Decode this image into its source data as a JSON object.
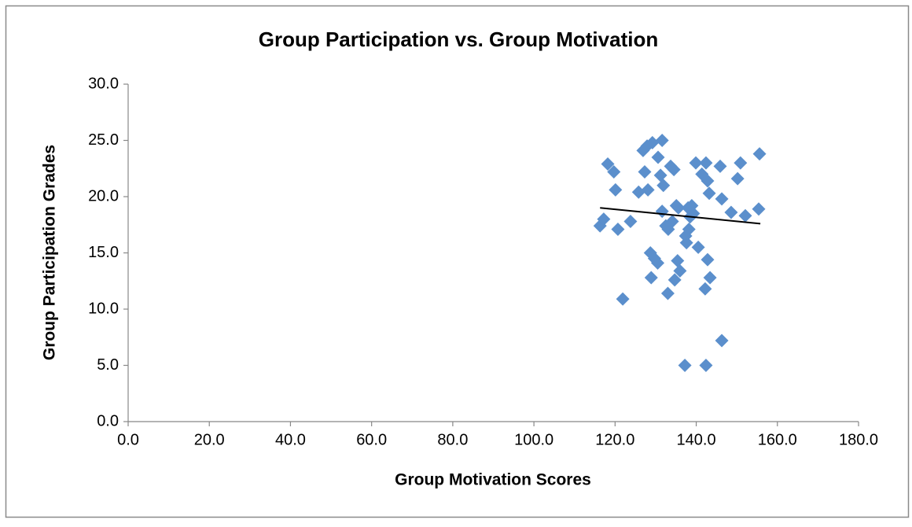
{
  "chart_data": {
    "type": "scatter",
    "title": "Group Participation vs. Group Motivation",
    "x_label": "Group Motivation Scores",
    "y_label": "Group Participation Grades",
    "xlim": [
      0,
      180
    ],
    "ylim": [
      0,
      30
    ],
    "xticks": [
      {
        "value": 0,
        "label": "0.0"
      },
      {
        "value": 20,
        "label": "20.0"
      },
      {
        "value": 40,
        "label": "40.0"
      },
      {
        "value": 60,
        "label": "60.0"
      },
      {
        "value": 80,
        "label": "80.0"
      },
      {
        "value": 100,
        "label": "100.0"
      },
      {
        "value": 120,
        "label": "120.0"
      },
      {
        "value": 140,
        "label": "140.0"
      },
      {
        "value": 160,
        "label": "160.0"
      },
      {
        "value": 180,
        "label": "180.0"
      }
    ],
    "yticks": [
      {
        "value": 0,
        "label": "0.0"
      },
      {
        "value": 5,
        "label": "5.0"
      },
      {
        "value": 10,
        "label": "10.0"
      },
      {
        "value": 15,
        "label": "15.0"
      },
      {
        "value": 20,
        "label": "20.0"
      },
      {
        "value": 25,
        "label": "25.0"
      },
      {
        "value": 30,
        "label": "30.0"
      }
    ],
    "grid": false,
    "series": [
      {
        "color": "#5b8fcc",
        "x": [
          116.3,
          117.2,
          118.2,
          119.7,
          120.1,
          120.7,
          121.9,
          123.8,
          125.8,
          126.9,
          127.9,
          127.3,
          128.1,
          128.7,
          128.9,
          129.7,
          130.5,
          129.2,
          130.6,
          131.6,
          131.2,
          131.9,
          131.6,
          132.5,
          133.1,
          134.1,
          133.7,
          134.5,
          135.1,
          135.6,
          135.4,
          136.0,
          134.7,
          133.0,
          137.2,
          137.4,
          137.6,
          138.0,
          138.2,
          138.5,
          138.9,
          139.3,
          139.9,
          140.5,
          141.4,
          142.4,
          142.8,
          143.2,
          142.8,
          143.4,
          142.2,
          142.4,
          145.9,
          146.3,
          146.3,
          148.6,
          150.2,
          150.9,
          152.1,
          155.6,
          155.4
        ],
        "values": [
          17.4,
          18.0,
          22.9,
          22.2,
          20.6,
          17.1,
          10.9,
          17.8,
          20.4,
          24.1,
          24.5,
          22.2,
          20.6,
          15.0,
          12.8,
          14.5,
          14.1,
          24.8,
          23.5,
          25.0,
          21.9,
          21.0,
          18.7,
          17.4,
          17.1,
          17.8,
          22.7,
          22.4,
          19.2,
          19.0,
          14.3,
          13.4,
          12.6,
          11.4,
          5.0,
          16.5,
          15.9,
          19.0,
          17.1,
          18.2,
          19.2,
          18.5,
          23.0,
          15.5,
          22.0,
          23.0,
          21.4,
          20.3,
          14.4,
          12.8,
          11.8,
          5.0,
          22.7,
          19.8,
          7.2,
          18.6,
          21.6,
          23.0,
          18.3,
          23.8,
          18.9
        ]
      }
    ],
    "trendline": {
      "color": "#000000",
      "x": [
        116.3,
        155.8
      ],
      "values": [
        19.0,
        17.6
      ]
    }
  }
}
